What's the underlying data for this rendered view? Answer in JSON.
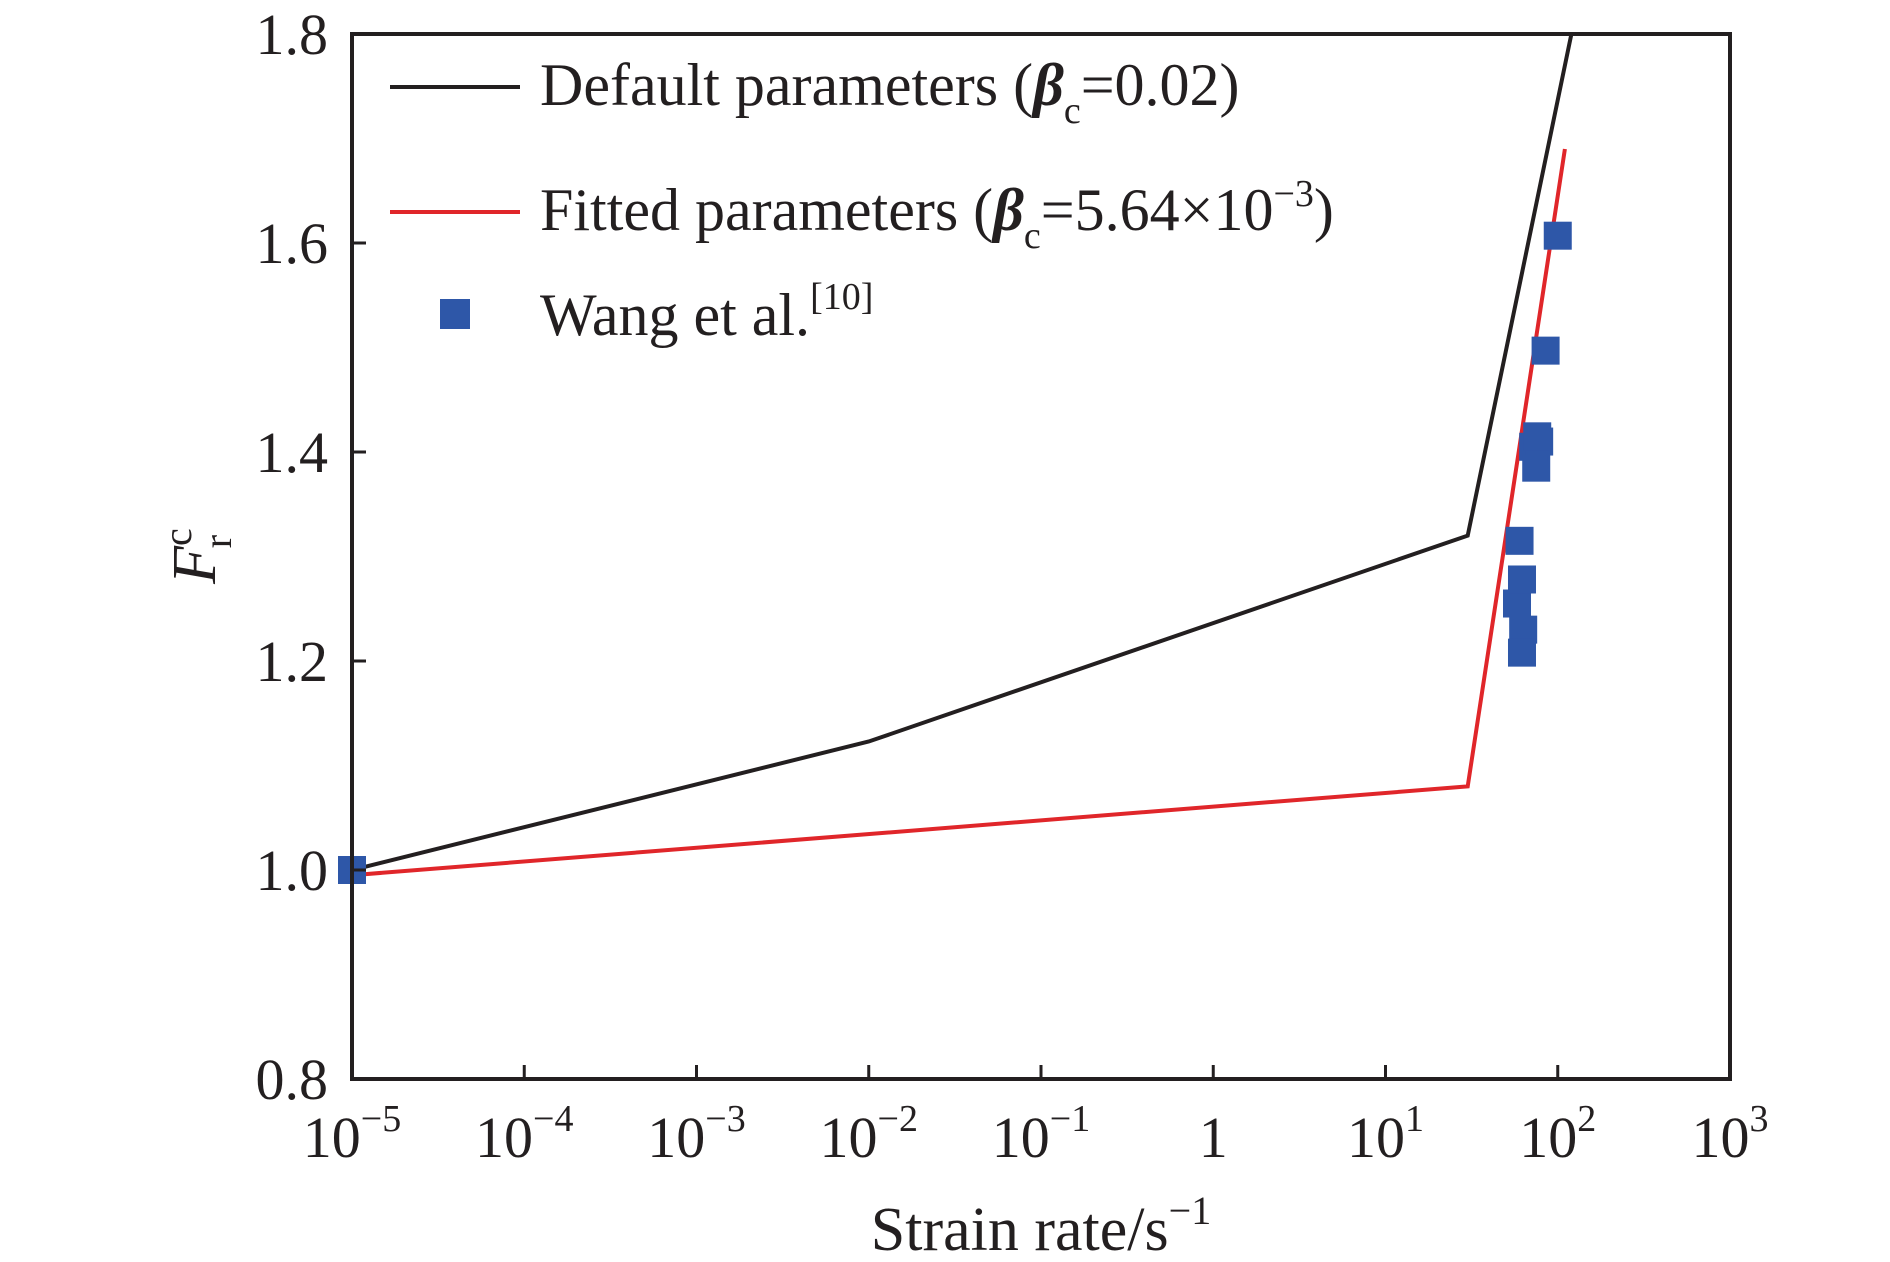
{
  "chart_data": {
    "type": "line",
    "x_scale": "log",
    "xlim": [
      1e-05,
      1000
    ],
    "ylim": [
      0.8,
      1.8
    ],
    "grid": false,
    "legend_position": "top-left",
    "xlabel": {
      "base": "Strain rate/s",
      "sup": "−1"
    },
    "ylabel": {
      "base": "F",
      "sup": "c",
      "sub": "r"
    },
    "x_ticks": [
      {
        "value": 1e-05,
        "base": "10",
        "sup": "−5"
      },
      {
        "value": 0.0001,
        "base": "10",
        "sup": "−4"
      },
      {
        "value": 0.001,
        "base": "10",
        "sup": "−3"
      },
      {
        "value": 0.01,
        "base": "10",
        "sup": "−2"
      },
      {
        "value": 0.1,
        "base": "10",
        "sup": "−1"
      },
      {
        "value": 1,
        "base": "1",
        "sup": ""
      },
      {
        "value": 10,
        "base": "10",
        "sup": "1"
      },
      {
        "value": 100,
        "base": "10",
        "sup": "2"
      },
      {
        "value": 1000,
        "base": "10",
        "sup": "3"
      }
    ],
    "y_ticks": [
      {
        "value": 0.8,
        "label": "0.8"
      },
      {
        "value": 1.0,
        "label": "1.0"
      },
      {
        "value": 1.2,
        "label": "1.2"
      },
      {
        "value": 1.4,
        "label": "1.4"
      },
      {
        "value": 1.6,
        "label": "1.6"
      },
      {
        "value": 1.8,
        "label": "1.8"
      }
    ],
    "series": [
      {
        "kind": "line",
        "color": "#231f20",
        "legend": {
          "text1": "Default parameters (",
          "beta": "β",
          "sub": "c",
          "text2": "=0.02)",
          "sup": "",
          "text3": ""
        },
        "points": [
          [
            1e-05,
            1.0
          ],
          [
            0.01,
            1.123
          ],
          [
            30,
            1.32
          ],
          [
            120,
            1.8
          ]
        ]
      },
      {
        "kind": "line",
        "color": "#e0262a",
        "legend": {
          "text1": "Fitted parameters (",
          "beta": "β",
          "sub": "c",
          "text2": "=5.64×10",
          "sup": "−3",
          "text3": ")"
        },
        "points": [
          [
            1e-05,
            0.995
          ],
          [
            30,
            1.08
          ],
          [
            110,
            1.69
          ]
        ]
      },
      {
        "kind": "scatter",
        "color": "#2e57a8",
        "legend": {
          "text": "Wang et al.",
          "sup": "[10]"
        },
        "points": [
          [
            1e-05,
            1.0
          ],
          [
            58,
            1.255
          ],
          [
            62,
            1.278
          ],
          [
            60,
            1.315
          ],
          [
            63,
            1.23
          ],
          [
            62,
            1.208
          ],
          [
            75,
            1.385
          ],
          [
            72,
            1.405
          ],
          [
            78,
            1.41
          ],
          [
            76,
            1.415
          ],
          [
            85,
            1.497
          ],
          [
            100,
            1.607
          ]
        ]
      }
    ]
  }
}
